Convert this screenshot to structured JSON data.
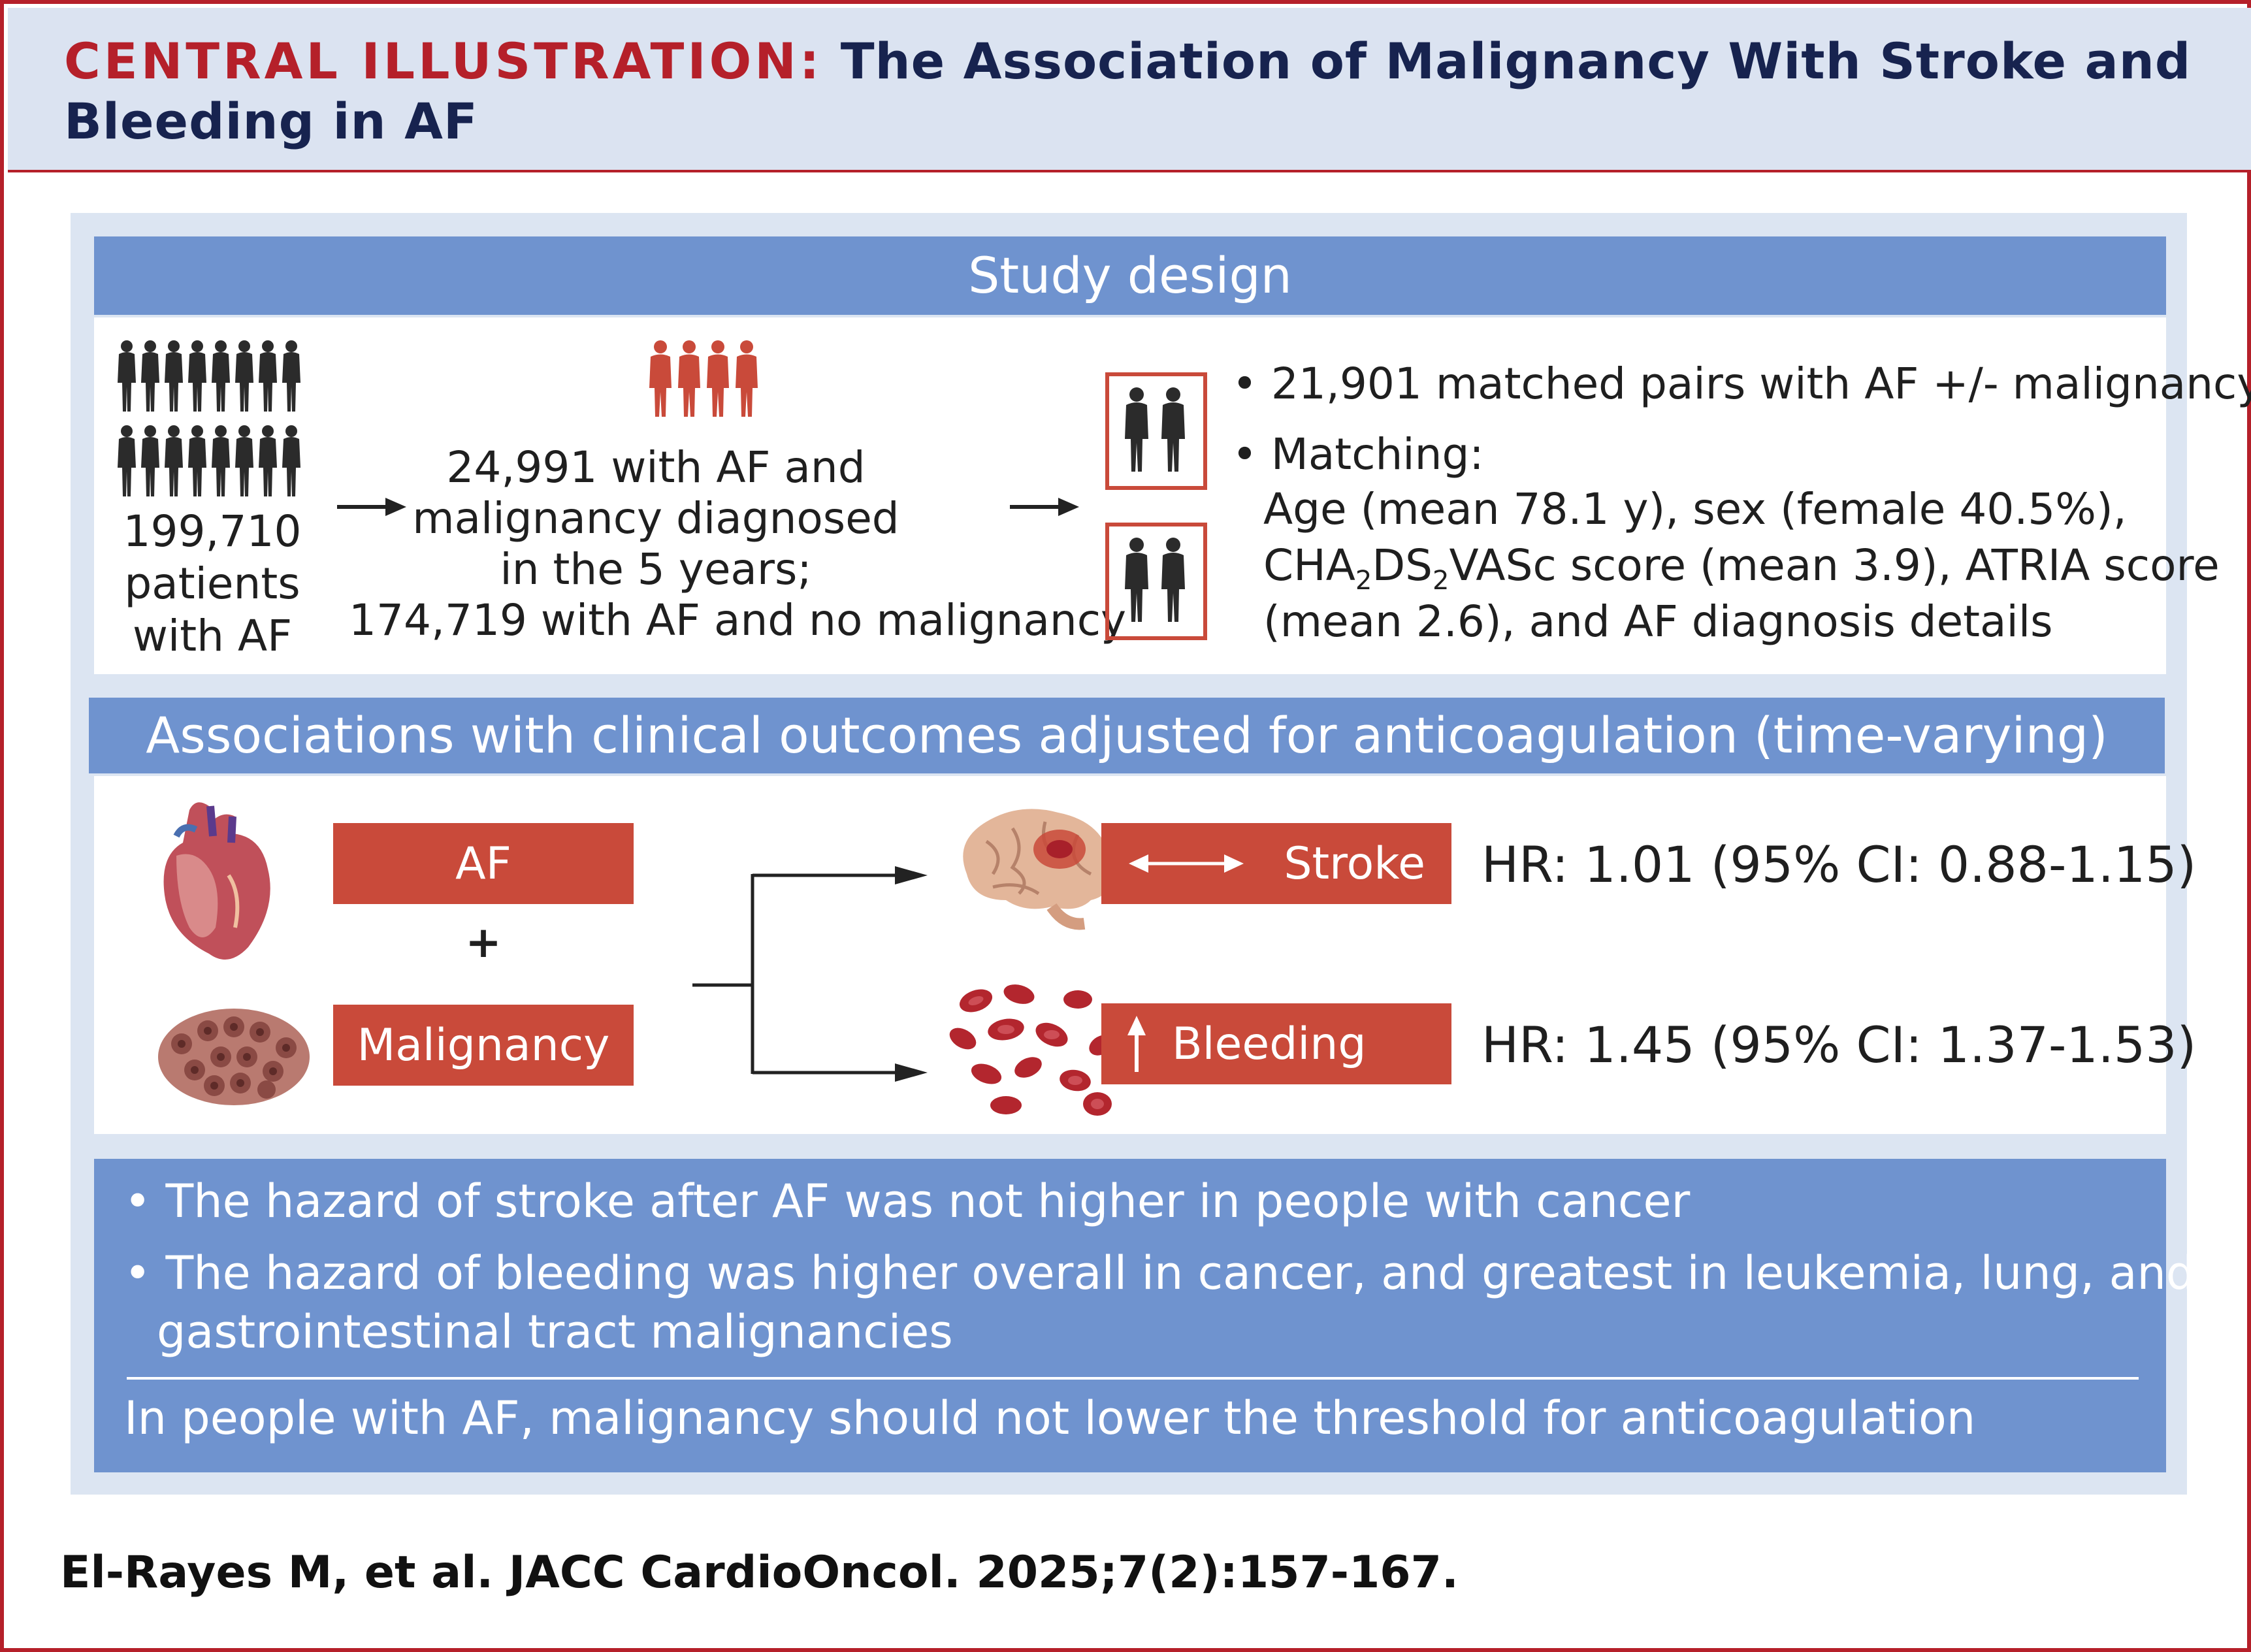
{
  "header": {
    "label": "CENTRAL ILLUSTRATION:",
    "title": " The Association of Malignancy With Stroke and Bleeding in AF"
  },
  "study_design": {
    "heading": "Study design",
    "left": {
      "line1": "199,710",
      "line2": "patients",
      "line3": "with AF"
    },
    "middle": {
      "line1": "24,991 with AF and",
      "line2": "malignancy diagnosed",
      "line3": "in the 5 years;",
      "line4": "174,719 with AF and no malignancy"
    },
    "right": {
      "bullet1": "21,901 matched pairs with AF +/- malignancy",
      "bullet2": "Matching:",
      "line_age": "Age (mean 78.1 y), sex (female 40.5%),",
      "cha_a": "CHA",
      "cha_sub1": "2",
      "cha_b": "DS",
      "cha_sub2": "2",
      "cha_c": "VASc score (mean 3.9), ATRIA score",
      "line_last": "(mean 2.6), and AF diagnosis details"
    }
  },
  "associations": {
    "heading": "Associations with clinical outcomes adjusted for anticoagulation (time-varying)",
    "af_label": "AF",
    "plus": "+",
    "malignancy_label": "Malignancy",
    "stroke_label": "Stroke",
    "bleeding_label": "Bleeding",
    "stroke_hr": "HR: 1.01 (95% CI: 0.88-1.15)",
    "bleeding_hr": "HR: 1.45 (95% CI: 1.37-1.53)"
  },
  "conclusions": {
    "bullet1": "The hazard of stroke after AF was not higher in people with cancer",
    "bullet2_line1": "The hazard of bleeding was higher overall in cancer, and greatest in leukemia, lung, and",
    "bullet2_line2": "gastrointestinal tract malignancies",
    "takeaway": "In people with AF, malignancy should not lower the threshold for anticoagulation"
  },
  "citation": "El-Rayes M, et al. JACC CardioOncol. 2025;7(2):157-167.",
  "colors": {
    "brand_red": "#b5202a",
    "bar_blue": "#6f93cf",
    "box_red": "#c94a3a",
    "header_bg": "#dbe3f1",
    "title_navy": "#17234f"
  },
  "icons": [
    "people-crowd-icon",
    "people-group-red-icon",
    "matched-pair-icon",
    "heart-icon",
    "tumor-cells-icon",
    "brain-icon",
    "blood-cells-icon",
    "arrow-right-icon",
    "double-arrow-icon",
    "up-arrow-icon"
  ]
}
